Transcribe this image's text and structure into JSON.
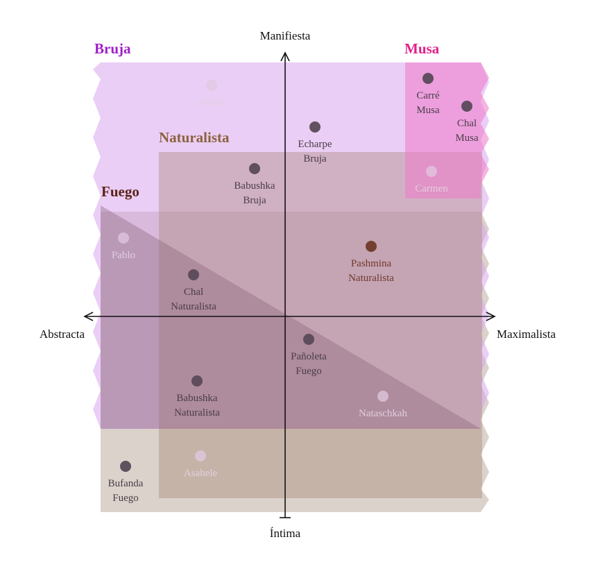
{
  "axes": {
    "top": "Manifiesta",
    "bottom": "Íntima",
    "left": "Abstracta",
    "right": "Maximalista"
  },
  "regions": {
    "bruja": {
      "label": "Bruja",
      "color": "#a020c8"
    },
    "musa": {
      "label": "Musa",
      "color": "#e0208a"
    },
    "naturalista": {
      "label": "Naturalista",
      "color": "#8b6240"
    },
    "fuego": {
      "label": "Fuego",
      "color": "#5a2418"
    }
  },
  "points": [
    {
      "id": "valeria",
      "lines": [
        "Valeria"
      ],
      "faded": true
    },
    {
      "id": "carre-musa",
      "lines": [
        "Carré",
        "Musa"
      ],
      "faded": false
    },
    {
      "id": "chal-musa",
      "lines": [
        "Chal",
        "Musa"
      ],
      "faded": false
    },
    {
      "id": "echarpe-bruja",
      "lines": [
        "Echarpe",
        "Bruja"
      ],
      "faded": false
    },
    {
      "id": "babushka-bruja",
      "lines": [
        "Babushka",
        "Bruja"
      ],
      "faded": false
    },
    {
      "id": "carmen",
      "lines": [
        "Carmen"
      ],
      "faded": true
    },
    {
      "id": "pablo",
      "lines": [
        "Pablo"
      ],
      "faded": true
    },
    {
      "id": "pashmina-naturalista",
      "lines": [
        "Pashmina",
        "Naturalista"
      ],
      "faded": false,
      "accent": true
    },
    {
      "id": "chal-naturalista",
      "lines": [
        "Chal",
        "Naturalista"
      ],
      "faded": false
    },
    {
      "id": "panoleta-fuego",
      "lines": [
        "Pañoleta",
        "Fuego"
      ],
      "faded": false
    },
    {
      "id": "babushka-naturalista",
      "lines": [
        "Babushka",
        "Naturalista"
      ],
      "faded": false
    },
    {
      "id": "nataschkah",
      "lines": [
        "Nataschkah"
      ],
      "faded": true
    },
    {
      "id": "asahele",
      "lines": [
        "Asahele"
      ],
      "faded": true
    },
    {
      "id": "bufanda-fuego",
      "lines": [
        "Bufanda",
        "Fuego"
      ],
      "faded": false
    }
  ]
}
